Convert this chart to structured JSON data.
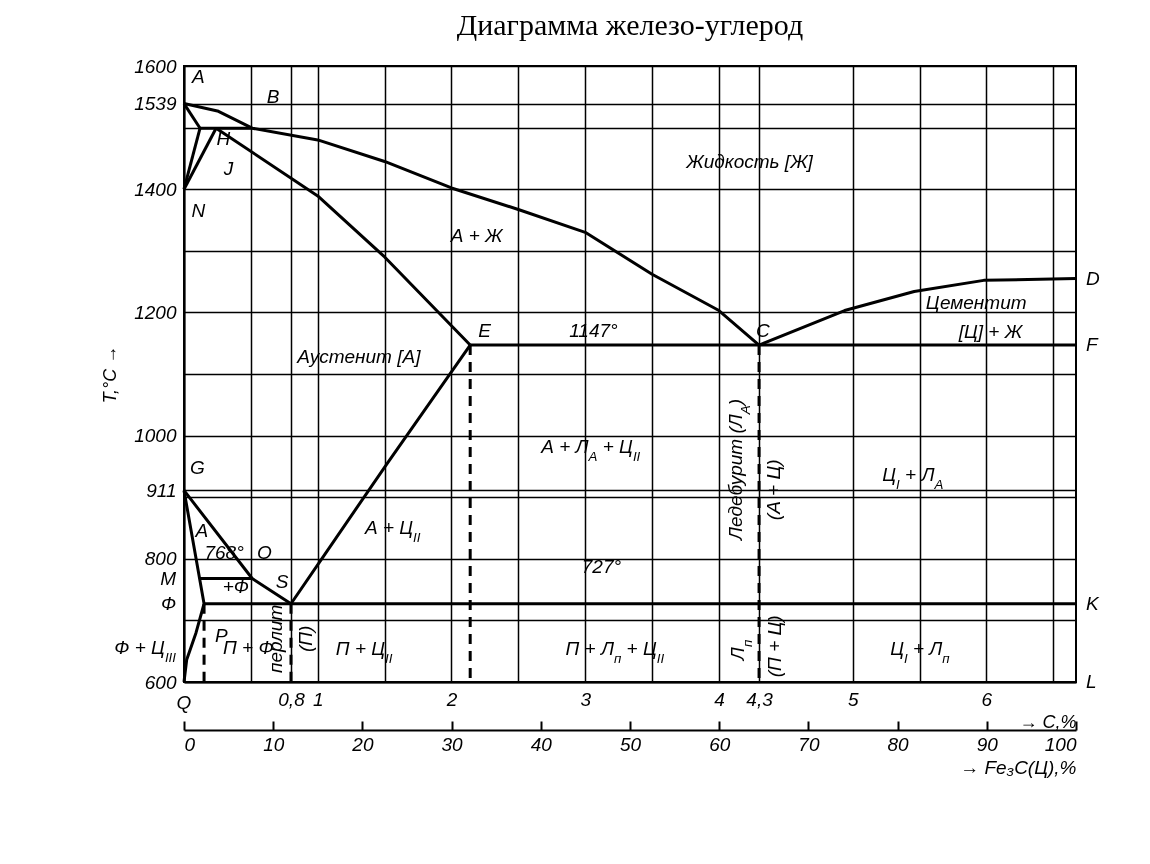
{
  "chart_data": {
    "type": "line",
    "title": "Диаграмма железо-углерод",
    "xlabel": "→ C,%",
    "ylabel": "T,°C →",
    "x2label": "→ Fe₃C(Ц),%",
    "xlim": [
      0,
      6.67
    ],
    "xticks": [
      {
        "value": 0,
        "label": null
      },
      {
        "value": 0.5,
        "label": null
      },
      {
        "value": 0.8,
        "label": "0,8"
      },
      1,
      {
        "value": 1.5,
        "label": null
      },
      2,
      {
        "value": 2.5,
        "label": null
      },
      3,
      {
        "value": 3.5,
        "label": null
      },
      4,
      {
        "value": 4.3,
        "label": "4,3"
      },
      5,
      {
        "value": 5.5,
        "label": null
      },
      6,
      {
        "value": 6.5,
        "label": null
      }
    ],
    "x2lim": [
      0,
      100
    ],
    "x2ticks": [
      0,
      10,
      20,
      30,
      40,
      50,
      60,
      70,
      80,
      90,
      100
    ],
    "ylim": [
      600,
      1600
    ],
    "yticks": [
      600,
      {
        "value": 700,
        "label": null
      },
      800,
      {
        "value": 900,
        "label": null
      },
      911,
      1000,
      {
        "value": 1100,
        "label": null
      },
      1200,
      {
        "value": 1300,
        "label": null
      },
      1400,
      {
        "value": 1500,
        "label": null
      },
      1539,
      1600
    ],
    "grid": true,
    "legend": false,
    "series": [
      {
        "type": "line",
        "color": "#000000",
        "line_style": "solid",
        "x": [
          0,
          0.25,
          0.51,
          1,
          1.5,
          2,
          2.5,
          3,
          3.5,
          4,
          4.3
        ],
        "values": [
          1539,
          1527,
          1499,
          1480,
          1445,
          1402,
          1367,
          1330,
          1262,
          1203,
          1147
        ]
      },
      {
        "type": "line",
        "color": "#000000",
        "line_style": "solid",
        "x": [
          4.3,
          4.94,
          5.46,
          5.98,
          6.67
        ],
        "values": [
          1147,
          1203,
          1234,
          1252,
          1255
        ]
      },
      {
        "type": "line",
        "color": "#000000",
        "line_style": "solid",
        "x": [
          0,
          0.12
        ],
        "values": [
          1539,
          1499
        ]
      },
      {
        "type": "line",
        "color": "#000000",
        "line_style": "solid",
        "x": [
          0.12,
          0.24,
          0.51
        ],
        "values": [
          1499,
          1499,
          1499
        ]
      },
      {
        "type": "line",
        "color": "#000000",
        "line_style": "solid",
        "x": [
          0.12,
          0
        ],
        "values": [
          1499,
          1400
        ]
      },
      {
        "type": "line",
        "color": "#000000",
        "line_style": "solid",
        "x": [
          0.24,
          0
        ],
        "values": [
          1499,
          1400
        ]
      },
      {
        "type": "line",
        "color": "#000000",
        "line_style": "solid",
        "x": [
          0.24,
          1,
          1.5,
          2.14
        ],
        "values": [
          1499,
          1389,
          1290,
          1147
        ]
      },
      {
        "type": "line",
        "color": "#000000",
        "line_style": "solid",
        "x": [
          2.14,
          4.3,
          6.67
        ],
        "values": [
          1147,
          1147,
          1147
        ]
      },
      {
        "type": "line",
        "color": "#000000",
        "line_style": "solid",
        "x": [
          2.14,
          1.52,
          1.03,
          0.8
        ],
        "values": [
          1147,
          955,
          800,
          727
        ]
      },
      {
        "type": "line",
        "color": "#000000",
        "line_style": "solid",
        "x": [
          0,
          0.51,
          0.8
        ],
        "values": [
          911,
          768,
          727
        ]
      },
      {
        "type": "line",
        "color": "#000000",
        "line_style": "solid",
        "x": [
          0,
          0.15,
          0.09,
          0.02,
          0
        ],
        "values": [
          911,
          727,
          680,
          636,
          600
        ]
      },
      {
        "type": "line",
        "color": "#000000",
        "line_style": "solid",
        "x": [
          0.12,
          0.51
        ],
        "values": [
          768,
          768
        ]
      },
      {
        "type": "line",
        "color": "#000000",
        "line_style": "solid",
        "x": [
          0.15,
          0.8,
          6.67
        ],
        "values": [
          727,
          727,
          727
        ]
      },
      {
        "type": "line",
        "color": "#000000",
        "line_style": "dashed",
        "x": [
          0.15,
          0.15
        ],
        "values": [
          727,
          600
        ]
      },
      {
        "type": "line",
        "color": "#000000",
        "line_style": "dashed",
        "x": [
          0.8,
          0.8
        ],
        "values": [
          727,
          600
        ]
      },
      {
        "type": "line",
        "color": "#000000",
        "line_style": "dashed",
        "x": [
          2.14,
          2.14
        ],
        "values": [
          1147,
          600
        ]
      },
      {
        "type": "line",
        "color": "#000000",
        "line_style": "dashed",
        "x": [
          4.3,
          4.3
        ],
        "values": [
          1147,
          600
        ]
      }
    ],
    "annotations": [
      "A",
      "H",
      "B",
      "J",
      "N",
      "Жидкость [Ж]",
      "А + Ж",
      "Аустенит [А]",
      "E",
      "1147°",
      "C",
      "Цементит",
      "[Ц] + Ж",
      "D",
      "F",
      "А + Л$_{А}$ + Ц$_{II}$",
      "Ледебурит (Л$_{А}$)",
      "(А + Ц)",
      "Ц$_{I}$ + Л$_{А}$",
      "G",
      "А",
      "768°",
      "O",
      "M",
      "+Ф",
      "S",
      "727°",
      "А + Ц$_{II}$",
      "Ф",
      "K",
      "P",
      "Ф + Ц$_{III}$",
      "П + Ф",
      "перлит",
      "(П)",
      "П + Ц$_{II}$",
      "П + Л$_{п}$ + Ц$_{II}$",
      "Л$_{п}$",
      "(П + Ц)",
      "Ц$_{I}$ + Л$_{п}$",
      "Q",
      "L"
    ]
  }
}
